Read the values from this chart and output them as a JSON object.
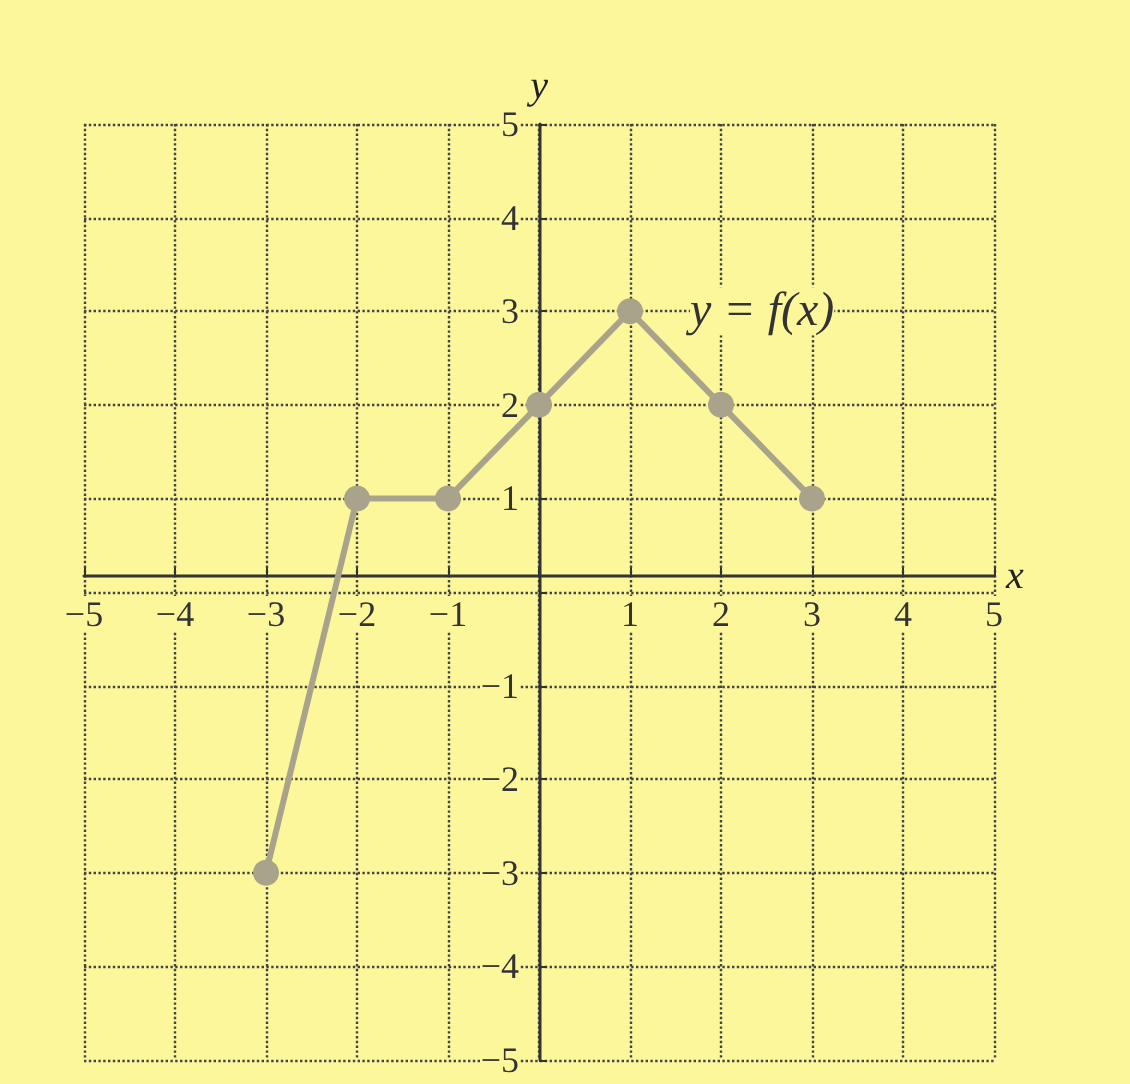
{
  "chart_data": {
    "type": "line",
    "xlabel": "x",
    "ylabel": "y",
    "x": [
      -3,
      -2,
      -1,
      0,
      1,
      2,
      3
    ],
    "series": [
      {
        "color": "#a8a38a",
        "values": [
          -3,
          1,
          1,
          2,
          3,
          2,
          1
        ]
      }
    ],
    "xlim": [
      -5,
      5
    ],
    "ylim": [
      -5,
      5
    ],
    "xticks": [
      -5,
      -4,
      -3,
      -2,
      -1,
      {
        "value": 0,
        "label": null
      },
      1,
      2,
      3,
      4,
      5
    ],
    "yticks": [
      -5,
      -4,
      -3,
      -2,
      -1,
      {
        "value": 0,
        "label": null
      },
      1,
      2,
      3,
      4,
      5
    ],
    "annotations": [
      {
        "text": "y = f(x)",
        "x": 1,
        "y": 3
      }
    ],
    "grid": true,
    "marker": "circle",
    "line_style": "solid"
  }
}
